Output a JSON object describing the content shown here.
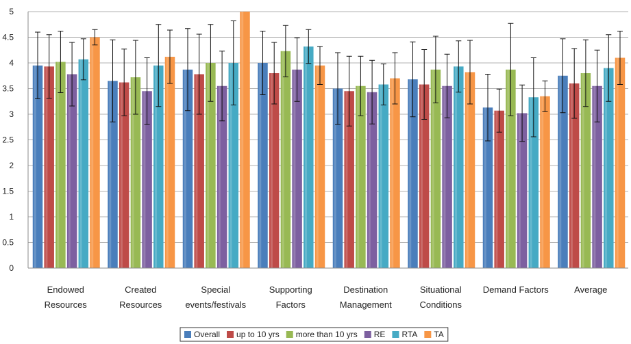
{
  "chart_data": {
    "type": "bar",
    "categories": [
      [
        "Endowed",
        "Resources"
      ],
      [
        "Created",
        "Resources"
      ],
      [
        "Special",
        "events/festivals"
      ],
      [
        "Supporting",
        "Factors"
      ],
      [
        "Destination",
        "Management"
      ],
      [
        "Situational",
        "Conditions"
      ],
      [
        "Demand Factors"
      ],
      [
        "Average"
      ]
    ],
    "ylim": [
      0,
      5
    ],
    "yticks": [
      "0",
      "0.5",
      "1",
      "1.5",
      "2",
      "2.5",
      "3",
      "3.5",
      "4",
      "4.5",
      "5"
    ],
    "grid": true,
    "legend_position": "bottom",
    "series": [
      {
        "name": "Overall",
        "color": "#4a7ebb",
        "values": [
          3.95,
          3.65,
          3.87,
          4.0,
          3.5,
          3.68,
          3.13,
          3.75
        ],
        "errors": [
          0.65,
          0.8,
          0.8,
          0.62,
          0.7,
          0.73,
          0.65,
          0.72
        ]
      },
      {
        "name": "up to 10 yrs",
        "color": "#be4b48",
        "values": [
          3.93,
          3.62,
          3.78,
          3.8,
          3.45,
          3.58,
          3.07,
          3.6
        ],
        "errors": [
          0.62,
          0.65,
          0.78,
          0.6,
          0.68,
          0.68,
          0.42,
          0.68
        ]
      },
      {
        "name": "more than 10 yrs",
        "color": "#98b954",
        "values": [
          4.02,
          3.72,
          4.0,
          4.23,
          3.55,
          3.87,
          3.87,
          3.8
        ],
        "errors": [
          0.6,
          0.72,
          0.75,
          0.5,
          0.58,
          0.65,
          0.9,
          0.65
        ]
      },
      {
        "name": "RE",
        "color": "#7d60a0",
        "values": [
          3.78,
          3.45,
          3.55,
          3.87,
          3.43,
          3.55,
          3.02,
          3.55
        ],
        "errors": [
          0.62,
          0.65,
          0.68,
          0.62,
          0.62,
          0.62,
          0.55,
          0.7
        ]
      },
      {
        "name": "RTA",
        "color": "#46aac4",
        "values": [
          4.07,
          3.95,
          4.0,
          4.32,
          3.58,
          3.93,
          3.33,
          3.9
        ],
        "errors": [
          0.4,
          0.8,
          0.82,
          0.33,
          0.4,
          0.5,
          0.77,
          0.65
        ]
      },
      {
        "name": "TA",
        "color": "#f79646",
        "values": [
          4.5,
          4.12,
          5.0,
          3.95,
          3.7,
          3.82,
          3.35,
          4.1
        ],
        "errors": [
          0.15,
          0.52,
          0.0,
          0.37,
          0.5,
          0.62,
          0.3,
          0.52
        ]
      }
    ]
  }
}
